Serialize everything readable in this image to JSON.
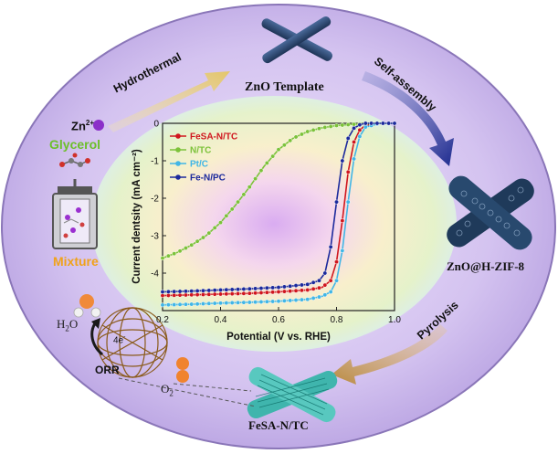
{
  "colors": {
    "ring": "#c9b6e8",
    "ring_edge": "#8a76b8",
    "arrow_yellow": "#e9d48a",
    "arrow_blue": "#2a3a9a",
    "arrow_tan": "#c89a52",
    "zn_purple": "#8b2fc9",
    "glycerol_green": "#6cbf2a",
    "mixture_orange": "#f0a21a",
    "series_fesa": "#d0161e",
    "series_ntc": "#7cc23a",
    "series_ptc": "#41b6e6",
    "series_fenpc": "#1c2a9c"
  },
  "labels": {
    "zno_template": "ZnO Template",
    "hydrothermal": "Hydrothermal",
    "self_assembly": "Self-assembly",
    "zno_zif": "ZnO@H-ZIF-8",
    "pyrolysis": "Pyrolysis",
    "fesa_ntc": "FeSA-N/TC",
    "zn2plus": "Zn",
    "zn_sup": "2+",
    "glycerol": "Glycerol",
    "mixture": "Mixture",
    "h2o": "H",
    "h2o_sub": "2",
    "h2o_o": "O",
    "o2": "O",
    "o2_sub": "2",
    "orr": "ORR",
    "four_e": "4e",
    "four_e_sup": "-"
  },
  "icons": [
    "autoclave-icon",
    "zno-rod-cross-icon",
    "zif-cross-icon",
    "fesa-cross-icon",
    "fullerene-icon",
    "water-molecule-icon",
    "oxygen-molecule-icon"
  ],
  "chart_data": {
    "type": "line",
    "xlabel": "Potential (V vs. RHE)",
    "ylabel": "Current dentsity (mA cm⁻²)",
    "xlim": [
      0.2,
      1.0
    ],
    "ylim": [
      -5,
      0
    ],
    "xticks": [
      "0.2",
      "0.4",
      "0.6",
      "0.8",
      "1.0"
    ],
    "yticks": [
      "0",
      "-1",
      "-2",
      "-3",
      "-4"
    ],
    "legend_position": "top-left",
    "series": [
      {
        "name": "FeSA-N/TC",
        "color": "#d0161e",
        "x": [
          0.2,
          0.3,
          0.4,
          0.5,
          0.6,
          0.7,
          0.75,
          0.78,
          0.8,
          0.82,
          0.84,
          0.86,
          0.88,
          0.9,
          0.95,
          1.0
        ],
        "y": [
          -4.6,
          -4.58,
          -4.56,
          -4.54,
          -4.5,
          -4.45,
          -4.38,
          -4.2,
          -3.7,
          -2.6,
          -1.3,
          -0.5,
          -0.18,
          -0.05,
          0.0,
          0.0
        ]
      },
      {
        "name": "N/TC",
        "color": "#7cc23a",
        "x": [
          0.2,
          0.25,
          0.3,
          0.35,
          0.4,
          0.45,
          0.5,
          0.55,
          0.6,
          0.65,
          0.7,
          0.75,
          0.8,
          0.85,
          0.9,
          1.0
        ],
        "y": [
          -3.6,
          -3.45,
          -3.25,
          -3.0,
          -2.65,
          -2.2,
          -1.7,
          -1.15,
          -0.7,
          -0.4,
          -0.22,
          -0.12,
          -0.06,
          -0.03,
          -0.01,
          0.0
        ]
      },
      {
        "name": "Pt/C",
        "color": "#41b6e6",
        "x": [
          0.2,
          0.3,
          0.4,
          0.5,
          0.6,
          0.7,
          0.75,
          0.78,
          0.8,
          0.82,
          0.84,
          0.86,
          0.88,
          0.9,
          0.95,
          1.0
        ],
        "y": [
          -4.85,
          -4.83,
          -4.8,
          -4.78,
          -4.75,
          -4.7,
          -4.62,
          -4.5,
          -4.2,
          -3.4,
          -2.1,
          -0.95,
          -0.35,
          -0.1,
          0.0,
          0.0
        ]
      },
      {
        "name": "Fe-N/PC",
        "color": "#1c2a9c",
        "x": [
          0.2,
          0.3,
          0.4,
          0.5,
          0.6,
          0.7,
          0.74,
          0.76,
          0.78,
          0.8,
          0.82,
          0.84,
          0.86,
          0.88,
          0.9,
          1.0
        ],
        "y": [
          -4.5,
          -4.48,
          -4.45,
          -4.42,
          -4.38,
          -4.3,
          -4.2,
          -4.0,
          -3.3,
          -2.1,
          -1.0,
          -0.4,
          -0.13,
          -0.04,
          0.0,
          0.0
        ]
      }
    ]
  }
}
